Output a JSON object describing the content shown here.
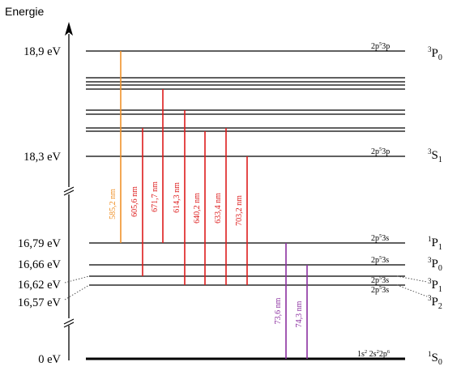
{
  "axis": {
    "label": "Energie"
  },
  "energy_labels": {
    "e18_9": "18,9 eV",
    "e18_3": "18,3 eV",
    "e16_79": "16,79 eV",
    "e16_66": "16,66 eV",
    "e16_62": "16,62 eV",
    "e16_57": "16,57 eV",
    "e0": "0 eV"
  },
  "configurations": {
    "p0_top": {
      "base": "2p",
      "sup": "5",
      "tail": "3p"
    },
    "s1": {
      "base": "2p",
      "sup": "5",
      "tail": "3p"
    },
    "p1_1679": {
      "base": "2p",
      "sup": "5",
      "tail": "3s"
    },
    "p0_1666": {
      "base": "2p",
      "sup": "5",
      "tail": "3s"
    },
    "p1_1662": {
      "base": "2p",
      "sup": "5",
      "tail": "3s"
    },
    "p2_1657": {
      "base": "2p",
      "sup": "5",
      "tail": "3s"
    },
    "ground": {
      "a": "1s",
      "a_sup": "2",
      "b": " 2s",
      "b_sup": "2",
      "c": "2p",
      "c_sup": "6"
    }
  },
  "terms": {
    "t_3P0_top": {
      "mult": "3",
      "letter": "P",
      "j": "0"
    },
    "t_3S1": {
      "mult": "3",
      "letter": "S",
      "j": "1"
    },
    "t_1P1": {
      "mult": "1",
      "letter": "P",
      "j": "1"
    },
    "t_3P0": {
      "mult": "3",
      "letter": "P",
      "j": "0"
    },
    "t_3P1": {
      "mult": "3",
      "letter": "P",
      "j": "1"
    },
    "t_3P2": {
      "mult": "3",
      "letter": "P",
      "j": "2"
    },
    "t_1S0": {
      "mult": "1",
      "letter": "S",
      "j": "0"
    }
  },
  "transitions": {
    "t585": {
      "label": "585,2 nm",
      "color": "#f0922a"
    },
    "t605": {
      "label": "605,6 nm",
      "color": "#dd1c1c"
    },
    "t671": {
      "label": "671,7 nm",
      "color": "#dd1c1c"
    },
    "t614": {
      "label": "614,3 nm",
      "color": "#dd1c1c"
    },
    "t640": {
      "label": "640,2 nm",
      "color": "#dd1c1c"
    },
    "t633": {
      "label": "633,4 nm",
      "color": "#dd1c1c"
    },
    "t703": {
      "label": "703,2 nm",
      "color": "#dd1c1c"
    },
    "t736": {
      "label": "73,6 nm",
      "color": "#8b2fa0"
    },
    "t743": {
      "label": "74,3 nm",
      "color": "#8b2fa0"
    }
  }
}
